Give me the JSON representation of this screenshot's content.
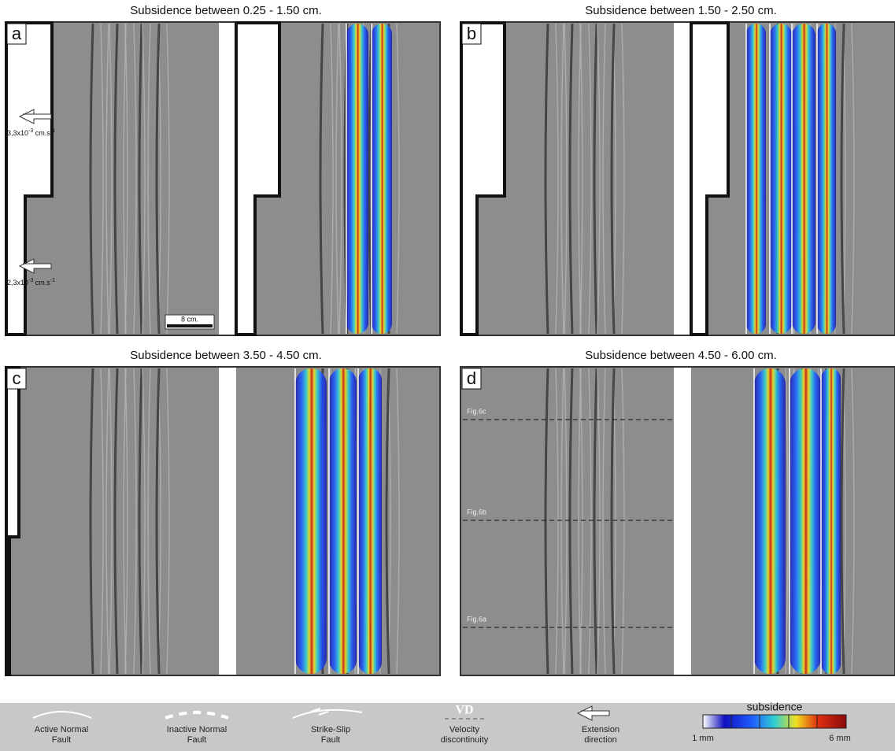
{
  "panels": [
    {
      "label": "a",
      "title": "Subsidence between  0.25 - 1.50 cm.",
      "velocities": [
        {
          "base": "3,3x10",
          "exp": "-3",
          "unit": " cm.s",
          "unit_exp": "-1"
        },
        {
          "base": "2,3x10",
          "exp": "-3",
          "unit": " cm.s",
          "unit_exp": "-1"
        }
      ],
      "scale_bar": "8 cm."
    },
    {
      "label": "b",
      "title": "Subsidence between  1.50 - 2.50 cm."
    },
    {
      "label": "c",
      "title": "Subsidence between  3.50 - 4.50 cm."
    },
    {
      "label": "d",
      "title": "Subsidence between  4.50 - 6.00 cm.",
      "sections": [
        "Fig.6c",
        "Fig.6b",
        "Fig.6a"
      ]
    }
  ],
  "legend": {
    "items": [
      {
        "label": [
          "Active Normal",
          "Fault"
        ]
      },
      {
        "label": [
          "Inactive Normal",
          "Fault"
        ]
      },
      {
        "label": [
          "Strike-Slip",
          "Fault"
        ]
      },
      {
        "symbol": "VD",
        "label": [
          "Velocity",
          "discontinuity"
        ]
      },
      {
        "label": [
          "Extension",
          "direction"
        ]
      }
    ],
    "colorbar": {
      "title": "subsidence",
      "min_label": "1 mm",
      "max_label": "6 mm"
    }
  }
}
